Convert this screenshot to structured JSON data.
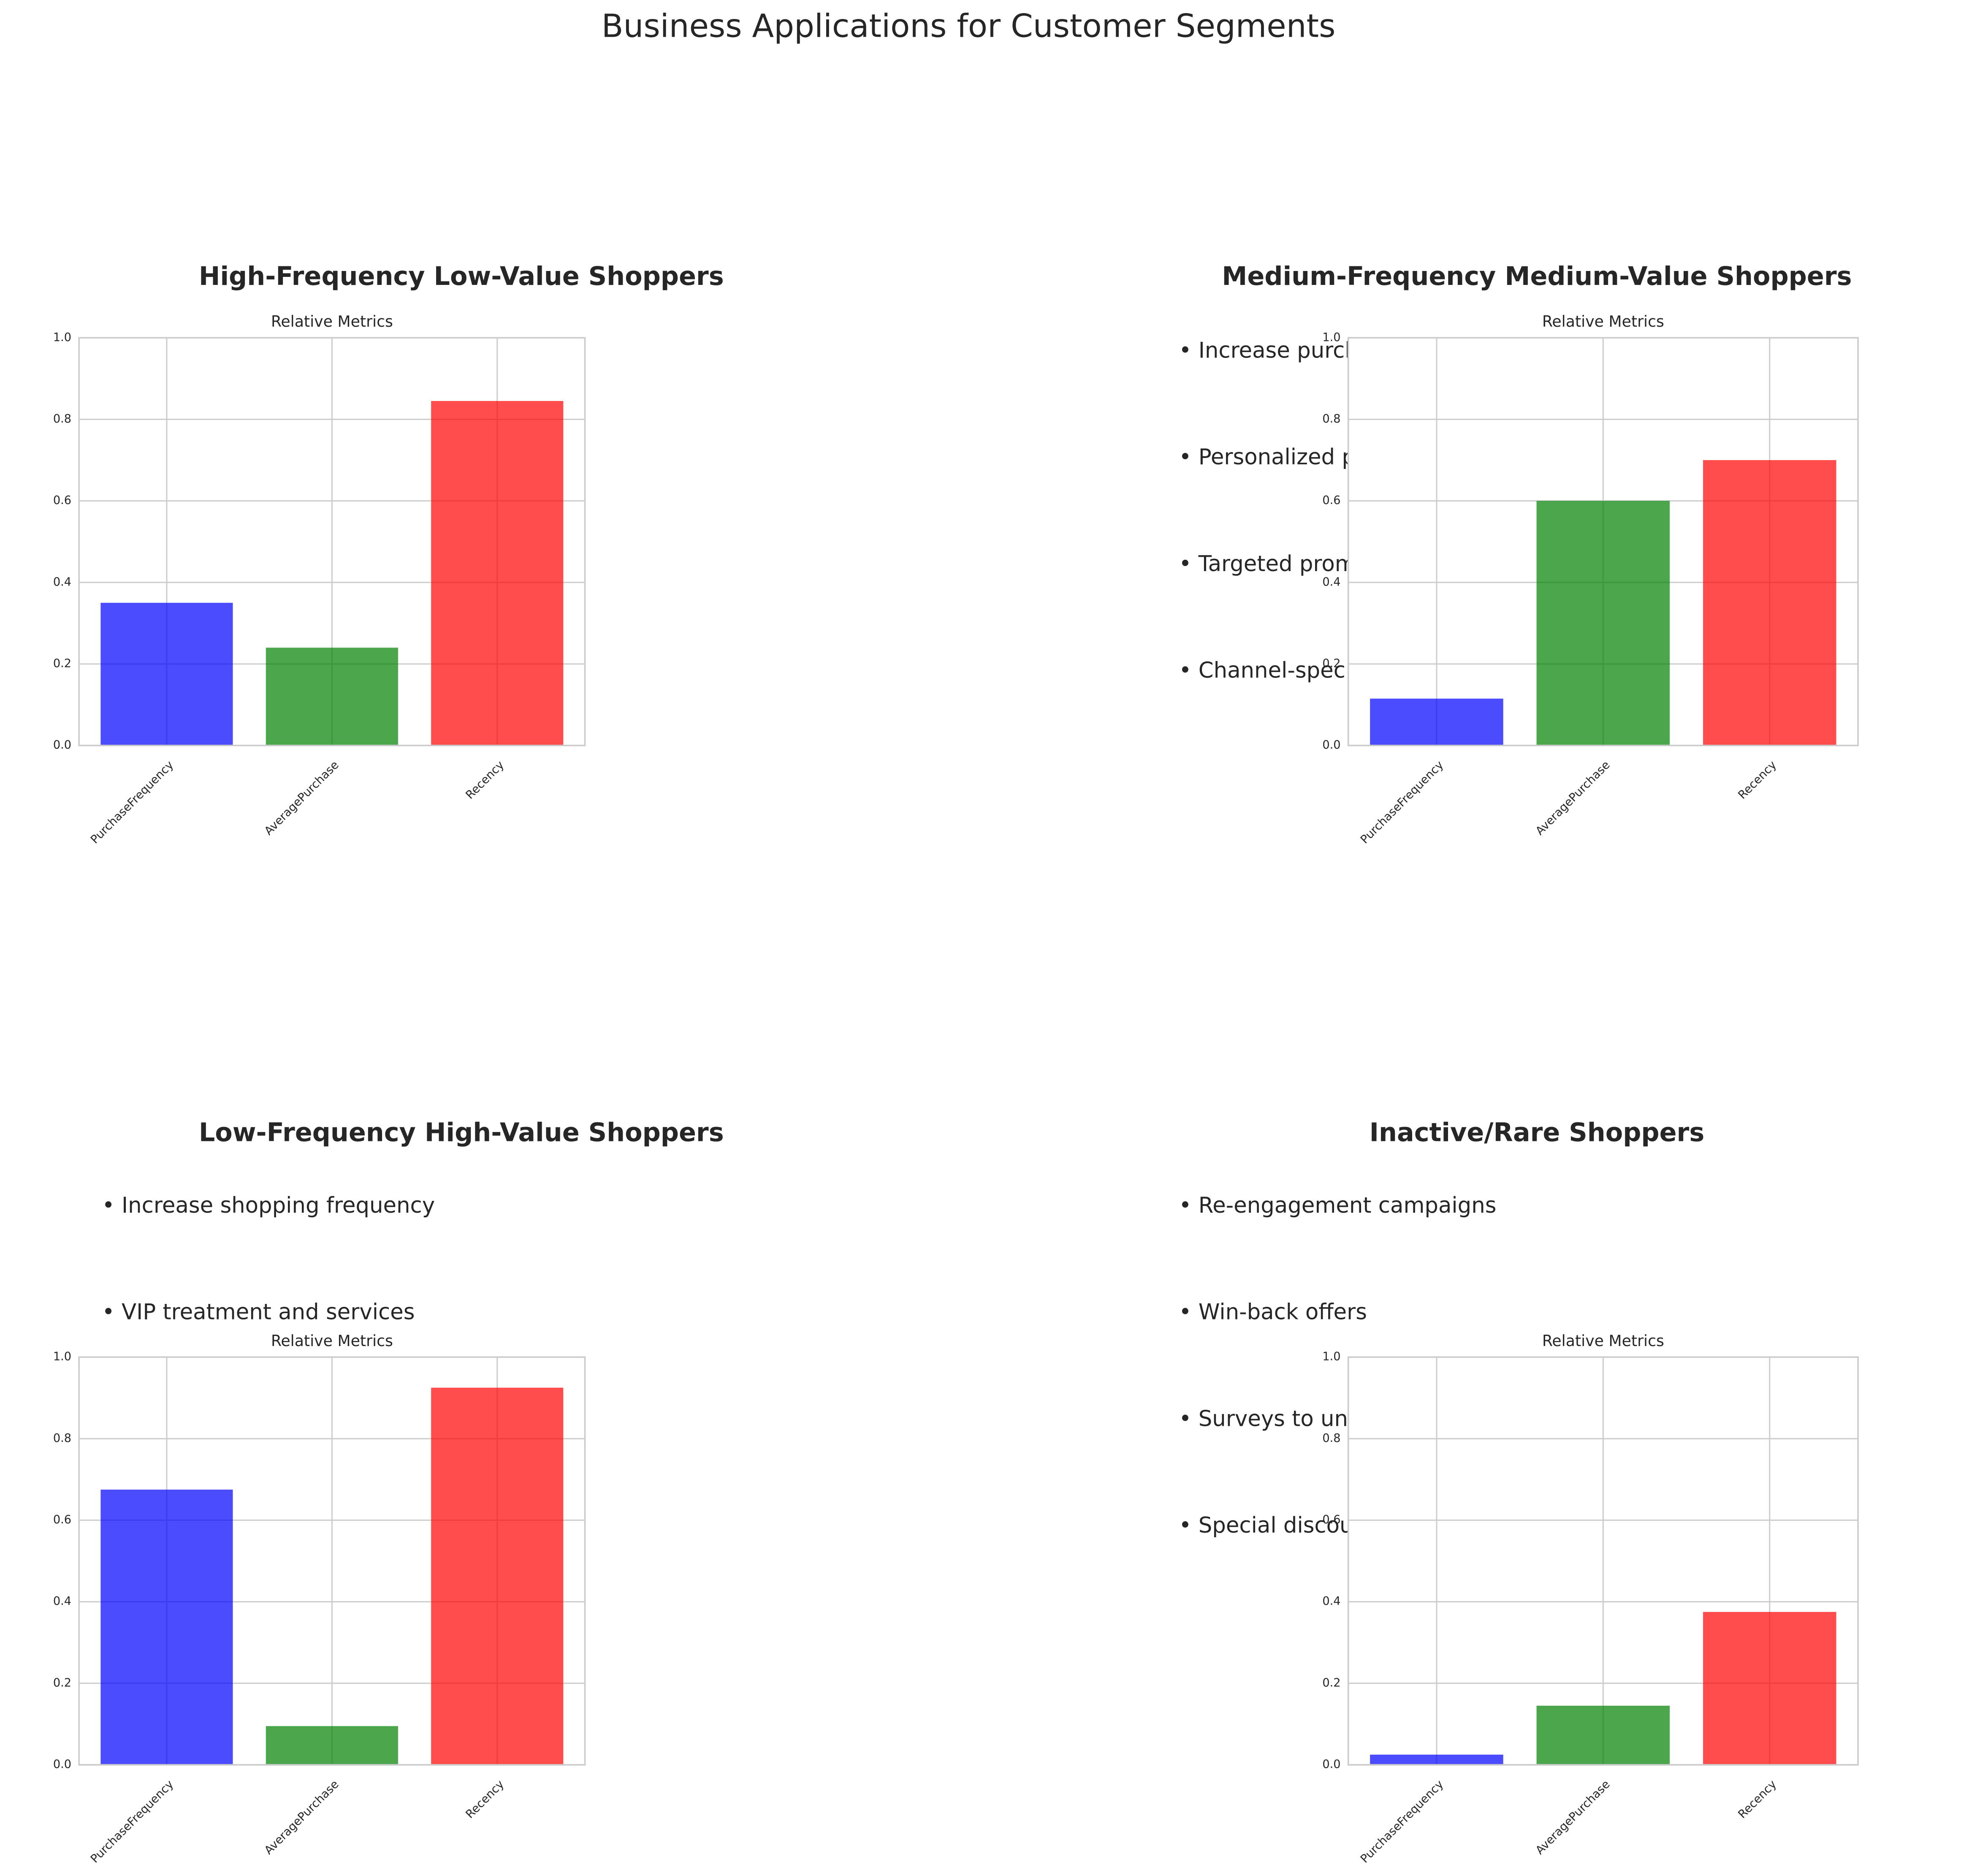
{
  "title": "Business Applications for Customer Segments",
  "chart_data": [
    {
      "type": "bar",
      "title": "High-Frequency Low-Value Shoppers",
      "subtitle": "Relative Metrics",
      "bullets": [],
      "categories": [
        "PurchaseFrequency",
        "AveragePurchase",
        "Recency"
      ],
      "values": [
        0.35,
        0.24,
        0.845
      ],
      "colors": [
        "#0000ff",
        "#008000",
        "#ff0000"
      ],
      "alpha": 0.7,
      "ylim": [
        0,
        1
      ],
      "yticks": [
        {
          "value": 0,
          "label": "0.0"
        },
        0.2,
        0.4,
        0.6,
        0.8,
        {
          "value": 1,
          "label": "1.0"
        }
      ],
      "grid": true
    },
    {
      "type": "bar",
      "title": "Medium-Frequency Medium-Value Shoppers",
      "subtitle": "Relative Metrics",
      "bullets": [
        "• Increase purch",
        "• Personalized p",
        "• Targeted prom",
        "• Channel-spec"
      ],
      "categories": [
        "PurchaseFrequency",
        "AveragePurchase",
        "Recency"
      ],
      "values": [
        0.115,
        0.6,
        0.7
      ],
      "colors": [
        "#0000ff",
        "#008000",
        "#ff0000"
      ],
      "alpha": 0.7,
      "ylim": [
        0,
        1
      ],
      "yticks": [
        {
          "value": 0,
          "label": "0.0"
        },
        0.2,
        0.4,
        0.6,
        0.8,
        {
          "value": 1,
          "label": "1.0"
        }
      ],
      "grid": true
    },
    {
      "type": "bar",
      "title": "Low-Frequency High-Value Shoppers",
      "subtitle": "Relative Metrics",
      "bullets": [
        "• Increase shopping frequency",
        "• VIP treatment and services"
      ],
      "categories": [
        "PurchaseFrequency",
        "AveragePurchase",
        "Recency"
      ],
      "values": [
        0.675,
        0.095,
        0.925
      ],
      "colors": [
        "#0000ff",
        "#008000",
        "#ff0000"
      ],
      "alpha": 0.7,
      "ylim": [
        0,
        1
      ],
      "yticks": [
        {
          "value": 0,
          "label": "0.0"
        },
        0.2,
        0.4,
        0.6,
        0.8,
        {
          "value": 1,
          "label": "1.0"
        }
      ],
      "grid": true
    },
    {
      "type": "bar",
      "title": "Inactive/Rare Shoppers",
      "subtitle": "Relative Metrics",
      "bullets": [
        "• Re-engagement campaigns",
        "• Win-back offers",
        "• Surveys to unc",
        "• Special discou"
      ],
      "categories": [
        "PurchaseFrequency",
        "AveragePurchase",
        "Recency"
      ],
      "values": [
        0.025,
        0.145,
        0.375
      ],
      "colors": [
        "#0000ff",
        "#008000",
        "#ff0000"
      ],
      "alpha": 0.7,
      "ylim": [
        0,
        1
      ],
      "yticks": [
        {
          "value": 0,
          "label": "0.0"
        },
        0.2,
        0.4,
        0.6,
        0.8,
        {
          "value": 1,
          "label": "1.0"
        }
      ],
      "grid": true
    }
  ]
}
